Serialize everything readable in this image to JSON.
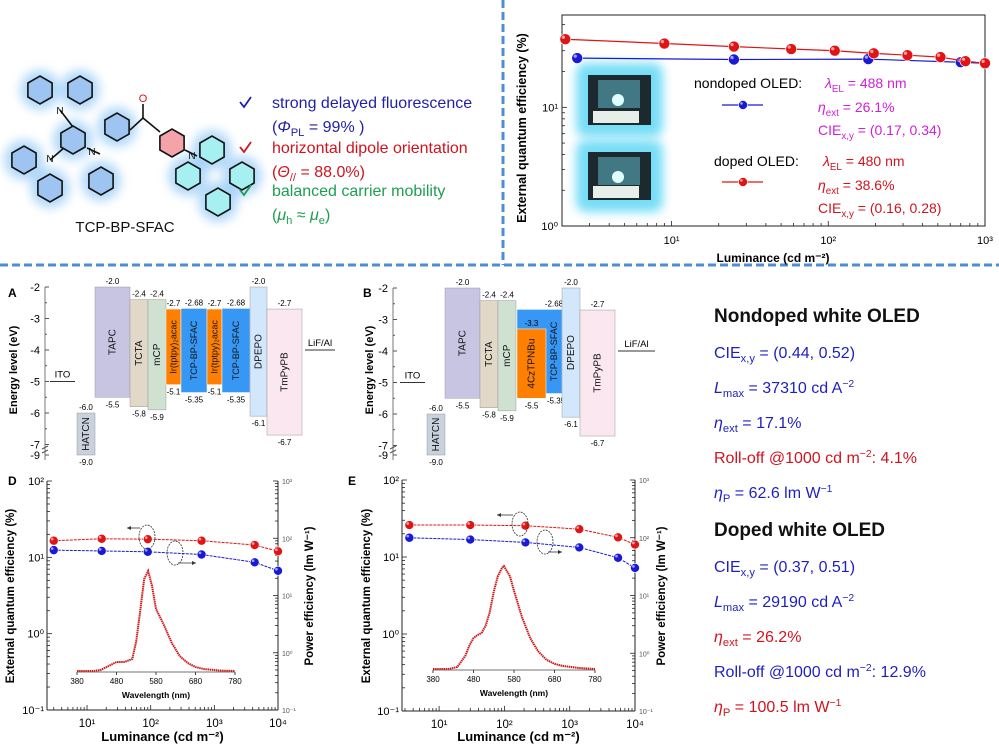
{
  "molecule": {
    "name": "TCP-BP-SFAC",
    "oxygen_label": "O",
    "nitrogen_label": "N",
    "ring_colors": {
      "carbazole": "#9ec5f2",
      "benzoyl": "#f5a3ab",
      "acridine": "#a6f0f2",
      "glow": "#7fc0f5"
    }
  },
  "features": [
    {
      "icon": "check-icon",
      "color": "#1f1fa8",
      "line1": [
        {
          "text": "strong delayed fluorescence"
        }
      ],
      "line2": [
        {
          "text": "("
        },
        {
          "i": "Φ"
        },
        {
          "sub": "PL"
        },
        {
          "text": " = 99% )"
        }
      ]
    },
    {
      "icon": "check-icon",
      "color": "#d0141e",
      "line1": [
        {
          "text": "horizontal dipole orientation"
        }
      ],
      "line2": [
        {
          "text": "("
        },
        {
          "i": "Θ"
        },
        {
          "sub": "//"
        },
        {
          "text": " = 88.0%)"
        }
      ]
    },
    {
      "icon": "check-icon",
      "color": "#1e9e52",
      "line1": [
        {
          "text": "balanced carrier mobility"
        }
      ],
      "line2": [
        {
          "text": "("
        },
        {
          "i": "μ"
        },
        {
          "sub": "h"
        },
        {
          "text": " ≈ "
        },
        {
          "i": "μ"
        },
        {
          "sub": "e"
        },
        {
          "text": ")"
        }
      ]
    }
  ],
  "divider_color": "#4a8fd6",
  "energy_diagrams": [
    {
      "panel": "A",
      "ylabel": "Energy level (eV)",
      "yticks": [
        "-2",
        "-3",
        "-4",
        "-5",
        "-6",
        "-7",
        "-9"
      ],
      "electrodes": [
        {
          "name": "ITO",
          "level": -5
        },
        {
          "name": "LiF/Al",
          "level": -4
        }
      ],
      "layers": [
        {
          "name": "HATCN",
          "lumo": -6.0,
          "homo": -9.0,
          "lumo_label": "-6.0",
          "homo_label": "-9.0",
          "color": "#c9d1dd"
        },
        {
          "name": "TAPC",
          "lumo": -2.0,
          "homo": -5.5,
          "lumo_label": "-2.0",
          "homo_label": "-5.5",
          "color": "#c8c5e2"
        },
        {
          "name": "TCTA",
          "lumo": -2.4,
          "homo": -5.8,
          "lumo_label": "-2.4",
          "homo_label": "-5.8",
          "color": "#e2d8c8"
        },
        {
          "name": "mCP",
          "lumo": -2.4,
          "homo": -5.9,
          "lumo_label": "-2.4",
          "homo_label": "-5.9",
          "color": "#cfe2d2"
        },
        {
          "name": "Ir(tptpy)₂acac",
          "lumo": -2.7,
          "homo": -5.1,
          "lumo_label": "-2.7",
          "homo_label": "-5.1",
          "color": "#ff8000"
        },
        {
          "name": "TCP-BP-SFAC",
          "lumo": -2.68,
          "homo": -5.35,
          "lumo_label": "-2.68",
          "homo_label": "-5.35",
          "color": "#3797f5"
        },
        {
          "name": "Ir(tptpy)₂acac",
          "lumo": -2.7,
          "homo": -5.1,
          "lumo_label": "-2.7",
          "homo_label": "-5.1",
          "color": "#ff8000"
        },
        {
          "name": "TCP-BP-SFAC",
          "lumo": -2.68,
          "homo": -5.35,
          "lumo_label": "-2.68",
          "homo_label": "-5.35",
          "color": "#3797f5"
        },
        {
          "name": "DPEPO",
          "lumo": -2.0,
          "homo": -6.1,
          "lumo_label": "-2.0",
          "homo_label": "-6.1",
          "color": "#d2e7fb"
        },
        {
          "name": "TmPyPB",
          "lumo": -2.7,
          "homo": -6.7,
          "lumo_label": "-2.7",
          "homo_label": "-6.7",
          "color": "#fbe7f0"
        }
      ]
    },
    {
      "panel": "B",
      "ylabel": "Energy level (eV)",
      "yticks": [
        "-2",
        "-3",
        "-4",
        "-5",
        "-6",
        "-7",
        "-9"
      ],
      "electrodes": [
        {
          "name": "ITO",
          "level": -5
        },
        {
          "name": "LiF/Al",
          "level": -4
        }
      ],
      "layers": [
        {
          "name": "HATCN",
          "lumo": -6.0,
          "homo": -9.0,
          "lumo_label": "-6.0",
          "homo_label": "-9.0",
          "color": "#c9d1dd"
        },
        {
          "name": "TAPC",
          "lumo": -2.0,
          "homo": -5.5,
          "lumo_label": "-2.0",
          "homo_label": "-5.5",
          "color": "#c8c5e2"
        },
        {
          "name": "TCTA",
          "lumo": -2.4,
          "homo": -5.8,
          "lumo_label": "-2.4",
          "homo_label": "-5.8",
          "color": "#e2d8c8"
        },
        {
          "name": "mCP",
          "lumo": -2.4,
          "homo": -5.9,
          "lumo_label": "-2.4",
          "homo_label": "-5.9",
          "color": "#cfe2d2"
        },
        {
          "name": "TCP-BP-SFAC",
          "lumo": -2.68,
          "homo": -5.35,
          "lumo_label": "-2.68",
          "homo_label": "-5.35",
          "color": "#3797f5"
        },
        {
          "name": "4CzTPNBu",
          "lumo": -3.3,
          "homo": -5.5,
          "lumo_label": "-3.3",
          "homo_label": "-5.5",
          "color": "#ff8000"
        },
        {
          "name": "DPEPO",
          "lumo": -2.0,
          "homo": -6.1,
          "lumo_label": "-2.0",
          "homo_label": "-6.1",
          "color": "#d2e7fb"
        },
        {
          "name": "TmPyPB",
          "lumo": -2.7,
          "homo": -6.7,
          "lumo_label": "-2.7",
          "homo_label": "-6.7",
          "color": "#fbe7f0"
        }
      ]
    }
  ],
  "white_oled_summary": [
    {
      "title": "Nondoped white OLED",
      "lines": [
        {
          "color": "#1f1fbf",
          "segs": [
            {
              "text": "CIE"
            },
            {
              "sub": "x,y"
            },
            {
              "text": " = (0.44, 0.52)"
            }
          ]
        },
        {
          "color": "#1f1fbf",
          "segs": [
            {
              "i": "L"
            },
            {
              "sub": "max"
            },
            {
              "text": " = 37310 cd A"
            },
            {
              "sup": "−2"
            }
          ]
        },
        {
          "color": "#1f1fbf",
          "segs": [
            {
              "i": "η"
            },
            {
              "sub": "ext"
            },
            {
              "text": " = 17.1%"
            }
          ]
        },
        {
          "color": "#d0141e",
          "segs": [
            {
              "text": "Roll-off @1000 cd m"
            },
            {
              "sup": "−2"
            },
            {
              "text": ": 4.1%"
            }
          ]
        },
        {
          "color": "#1f1fbf",
          "segs": [
            {
              "i": "η"
            },
            {
              "sub": "P"
            },
            {
              "text": " = 62.6 lm W"
            },
            {
              "sup": "−1"
            }
          ]
        }
      ]
    },
    {
      "title": "Doped white OLED",
      "lines": [
        {
          "color": "#1f1fbf",
          "segs": [
            {
              "text": "CIE"
            },
            {
              "sub": "x,y"
            },
            {
              "text": " = (0.37, 0.51)"
            }
          ]
        },
        {
          "color": "#1f1fbf",
          "segs": [
            {
              "i": "L"
            },
            {
              "sub": "max"
            },
            {
              "text": " = 29190 cd A"
            },
            {
              "sup": "−2"
            }
          ]
        },
        {
          "color": "#d0141e",
          "segs": [
            {
              "i": "η"
            },
            {
              "sub": "ext"
            },
            {
              "text": " = 26.2%"
            }
          ]
        },
        {
          "color": "#1f1fbf",
          "segs": [
            {
              "text": "Roll-off @1000 cd m"
            },
            {
              "sup": "−2"
            },
            {
              "text": ": 12.9%"
            }
          ]
        },
        {
          "color": "#d0141e",
          "segs": [
            {
              "i": "η"
            },
            {
              "sub": "P"
            },
            {
              "text": " = 100.5 lm W"
            },
            {
              "sup": "−1"
            }
          ]
        }
      ]
    }
  ],
  "chart_data": [
    {
      "id": "blue-oled-eqe",
      "type": "line",
      "xlabel": "Luminance (cd m⁻²)",
      "ylabel": "External quantum efficiency (%)",
      "xscale": "log",
      "yscale": "log",
      "xlim": [
        2,
        1000
      ],
      "ylim": [
        1,
        60
      ],
      "xticks": [
        {
          "v": 10,
          "label": "10¹"
        },
        {
          "v": 100,
          "label": "10²"
        },
        {
          "v": 1000,
          "label": "10³"
        }
      ],
      "yticks": [
        {
          "v": 1,
          "label": "10⁰"
        },
        {
          "v": 10,
          "label": "10¹"
        }
      ],
      "grid": false,
      "legend_position": "center-right",
      "series": [
        {
          "name": "nondoped OLED",
          "color": "#1a1ad6",
          "x": [
            2.5,
            25,
            180,
            700,
            1000
          ],
          "y": [
            26.0,
            25.3,
            25.5,
            24.0,
            23.5
          ],
          "annotations": [
            [
              {
                "i": "λ"
              },
              {
                "sub": "EL"
              },
              {
                "text": " = 488 nm"
              }
            ],
            [
              {
                "i": "η"
              },
              {
                "sub": "ext"
              },
              {
                "text": " = 26.1%"
              }
            ],
            [
              {
                "text": "CIE"
              },
              {
                "sub": "x,y"
              },
              {
                "text": " = (0.17, 0.34)"
              }
            ]
          ],
          "annotation_color": "#d21fd6"
        },
        {
          "name": "doped OLED",
          "color": "#e01414",
          "x": [
            2.1,
            9,
            25,
            58,
            110,
            195,
            320,
            520,
            750,
            1000
          ],
          "y": [
            37.5,
            34.5,
            32.5,
            31.0,
            30.0,
            28.5,
            27.5,
            26.5,
            24.5,
            23.5
          ],
          "annotations": [
            [
              {
                "i": "λ"
              },
              {
                "sub": "EL"
              },
              {
                "text": " = 480 nm"
              }
            ],
            [
              {
                "i": "η"
              },
              {
                "sub": "ext"
              },
              {
                "text": " = 38.6%"
              }
            ],
            [
              {
                "text": "CIE"
              },
              {
                "sub": "x,y"
              },
              {
                "text": " = (0.16, 0.28)"
              }
            ]
          ],
          "annotation_color": "#d0141e"
        }
      ]
    },
    {
      "id": "D",
      "panel": "D",
      "type": "line",
      "xlabel": "Luminance (cd m⁻²)",
      "ylabel": "External quantum efficiency (%)",
      "ylabel_right": "Power efficiency (lm W⁻¹)",
      "xscale": "log",
      "yscale": "log",
      "xlim": [
        2.35,
        10000
      ],
      "ylim": [
        0.1,
        100
      ],
      "ylim_right": [
        0.1,
        1000
      ],
      "xticks": [
        {
          "v": 10,
          "label": "10¹"
        },
        {
          "v": 100,
          "label": "10²"
        },
        {
          "v": 1000,
          "label": "10³"
        },
        {
          "v": 10000,
          "label": "10⁴"
        }
      ],
      "yticks": [
        {
          "v": 0.1,
          "label": "10⁻¹"
        },
        {
          "v": 1,
          "label": "10⁰"
        },
        {
          "v": 10,
          "label": "10¹"
        },
        {
          "v": 100,
          "label": "10²"
        }
      ],
      "yticks_right": [
        {
          "v": 0.1,
          "label": "10⁻¹"
        },
        {
          "v": 1,
          "label": "10⁰"
        },
        {
          "v": 10,
          "label": "10¹"
        },
        {
          "v": 100,
          "label": "10²"
        },
        {
          "v": 1000,
          "label": "10³"
        }
      ],
      "series": [
        {
          "axis": "left",
          "color": "#e01414",
          "x": [
            3,
            17,
            90,
            630,
            4300,
            10000
          ],
          "y": [
            16.5,
            17.5,
            17.3,
            16.5,
            14.5,
            12.0
          ]
        },
        {
          "axis": "right",
          "color": "#1a1ad6",
          "x": [
            3,
            17,
            90,
            630,
            4300,
            10000
          ],
          "y": [
            62,
            60,
            58,
            52,
            38,
            27
          ]
        }
      ],
      "inset": {
        "type": "line",
        "xlabel": "Wavelength (nm)",
        "xlim": [
          380,
          780
        ],
        "xticks": [
          "380",
          "480",
          "580",
          "680",
          "780"
        ],
        "color": "#d01818",
        "x": [
          380,
          420,
          440,
          460,
          480,
          500,
          520,
          530,
          540,
          550,
          560,
          570,
          580,
          600,
          620,
          640,
          660,
          680,
          700,
          740,
          780
        ],
        "y": [
          0,
          0,
          0.01,
          0.05,
          0.09,
          0.09,
          0.12,
          0.3,
          0.6,
          0.92,
          1.0,
          0.85,
          0.62,
          0.46,
          0.28,
          0.15,
          0.08,
          0.04,
          0.02,
          0.005,
          0
        ]
      }
    },
    {
      "id": "E",
      "panel": "E",
      "type": "line",
      "xlabel": "Luminance (cd m⁻²)",
      "ylabel": "External quantum efficiency (%)",
      "ylabel_right": "Power efficiency (lm W⁻¹)",
      "xscale": "log",
      "yscale": "log",
      "xlim": [
        2.7,
        10000
      ],
      "ylim": [
        0.1,
        100
      ],
      "ylim_right": [
        0.1,
        1000
      ],
      "xticks": [
        {
          "v": 10,
          "label": "10¹"
        },
        {
          "v": 100,
          "label": "10²"
        },
        {
          "v": 1000,
          "label": "10³"
        },
        {
          "v": 10000,
          "label": "10⁴"
        }
      ],
      "yticks": [
        {
          "v": 0.1,
          "label": "10⁻¹"
        },
        {
          "v": 1,
          "label": "10⁰"
        },
        {
          "v": 10,
          "label": "10¹"
        },
        {
          "v": 100,
          "label": "10²"
        }
      ],
      "yticks_right": [
        {
          "v": 0.1,
          "label": "10⁻¹"
        },
        {
          "v": 1,
          "label": "10⁰"
        },
        {
          "v": 10,
          "label": "10¹"
        },
        {
          "v": 100,
          "label": "10²"
        },
        {
          "v": 1000,
          "label": "10³"
        }
      ],
      "series": [
        {
          "axis": "left",
          "color": "#e01414",
          "x": [
            3.5,
            30,
            210,
            1400,
            5500,
            10000
          ],
          "y": [
            26,
            26,
            25.5,
            23,
            18,
            14.5
          ]
        },
        {
          "axis": "right",
          "color": "#1a1ad6",
          "x": [
            3.5,
            30,
            210,
            1400,
            5500,
            10000
          ],
          "y": [
            100,
            93,
            83,
            68,
            45,
            30
          ]
        }
      ],
      "inset": {
        "type": "line",
        "xlabel": "Wavelength (nm)",
        "xlim": [
          380,
          780
        ],
        "xticks": [
          "380",
          "480",
          "580",
          "680",
          "780"
        ],
        "color": "#d01818",
        "x": [
          380,
          420,
          440,
          460,
          470,
          480,
          490,
          500,
          510,
          520,
          530,
          540,
          550,
          555,
          570,
          580,
          600,
          620,
          640,
          660,
          680,
          700,
          740,
          780
        ],
        "y": [
          0,
          0,
          0.02,
          0.13,
          0.23,
          0.3,
          0.33,
          0.35,
          0.42,
          0.55,
          0.75,
          0.9,
          0.98,
          1.0,
          0.9,
          0.76,
          0.5,
          0.3,
          0.17,
          0.09,
          0.05,
          0.03,
          0.01,
          0
        ]
      }
    }
  ]
}
